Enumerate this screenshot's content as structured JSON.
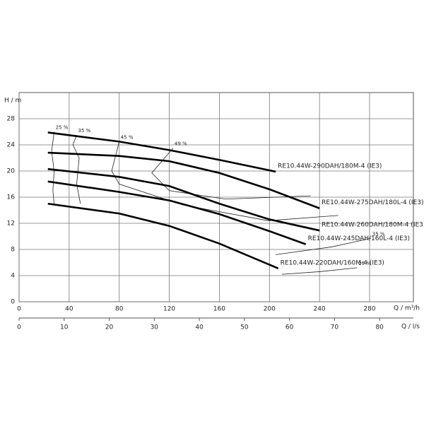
{
  "chart_data": {
    "type": "line",
    "xlabel": "Q / m³/h",
    "ylabel": "H / m",
    "x2label": "Q / l/s",
    "xlim": [
      0,
      315
    ],
    "ylim": [
      0,
      32
    ],
    "x2lim": [
      0,
      87.5
    ],
    "xticks": [
      0,
      40,
      80,
      120,
      160,
      200,
      240,
      280
    ],
    "yticks": [
      0,
      4,
      8,
      12,
      16,
      20,
      24,
      28
    ],
    "x2ticks": [
      0,
      10,
      20,
      30,
      40,
      50,
      60,
      70,
      80
    ],
    "grid": true,
    "series": [
      {
        "name": "RE10.44W-290DAH/180M-4 (IE3)",
        "color": "#000000",
        "x": [
          23,
          80,
          120,
          160,
          205
        ],
        "values": [
          25.9,
          24.5,
          23.2,
          21.7,
          19.9
        ]
      },
      {
        "name": "RE10.44W-275DAH/180L-4 (IE3)",
        "color": "#000000",
        "x": [
          23,
          80,
          120,
          160,
          200,
          240
        ],
        "values": [
          22.8,
          22.3,
          21.5,
          19.7,
          17.2,
          14.3
        ]
      },
      {
        "name": "RE10.44W-260DAH/180M-4 (IE3)",
        "color": "#000000",
        "x": [
          23,
          80,
          120,
          160,
          200,
          240
        ],
        "values": [
          20.3,
          19.1,
          17.7,
          15.0,
          12.6,
          10.9
        ]
      },
      {
        "name": "RE10.44W-245DAH/160L-4 (IE3)",
        "color": "#000000",
        "x": [
          23,
          80,
          120,
          160,
          200,
          229
        ],
        "values": [
          18.4,
          16.8,
          15.5,
          13.4,
          10.8,
          8.8
        ]
      },
      {
        "name": "RE10.44W-220DAH/160M-4 (IE3)",
        "color": "#000000",
        "x": [
          23,
          80,
          120,
          160,
          207
        ],
        "values": [
          15.0,
          13.5,
          11.6,
          8.9,
          5.1
        ]
      }
    ],
    "efficiency_curves": [
      {
        "name": "25 %",
        "branches": [
          {
            "x": [
              28,
              26,
              28,
              27,
              28
            ],
            "values": [
              26,
              23,
              20,
              17,
              15
            ]
          },
          {
            "x": [
              270,
              240,
              210
            ],
            "values": [
              5.2,
              4.6,
              4.2
            ]
          }
        ]
      },
      {
        "name": "35 %",
        "branches": [
          {
            "x": [
              46,
              43,
              48,
              46,
              49
            ],
            "values": [
              25.5,
              24,
              22,
              18,
              15
            ]
          },
          {
            "x": [
              281,
              250,
              205
            ],
            "values": [
              9.7,
              8.4,
              7.2
            ]
          }
        ]
      },
      {
        "name": "45 %",
        "branches": [
          {
            "x": [
              80,
              74,
              80,
              131,
              199,
              255
            ],
            "values": [
              24.5,
              20,
              18,
              14.8,
              12.4,
              13.2
            ]
          }
        ]
      },
      {
        "name": "49 %",
        "branches": [
          {
            "x": [
              123,
              106,
              120,
              165,
              233
            ],
            "values": [
              23.5,
              19.7,
              17,
              15.7,
              16.2
            ]
          }
        ]
      }
    ]
  }
}
